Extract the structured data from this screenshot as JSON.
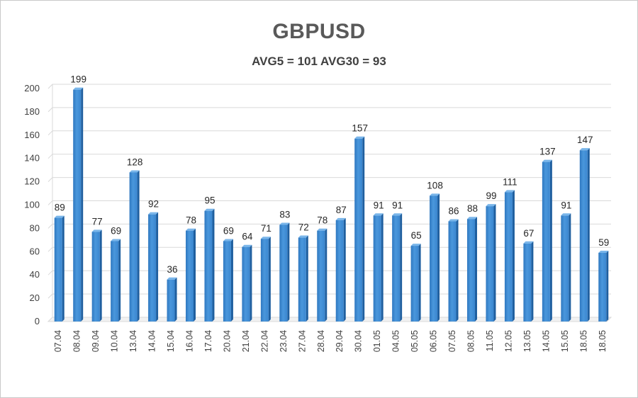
{
  "chart_data": {
    "type": "bar",
    "title": "GBPUSD",
    "subtitle": "AVG5 = 101 AVG30 = 93",
    "categories": [
      "07.04",
      "08.04",
      "09.04",
      "10.04",
      "13.04",
      "14.04",
      "15.04",
      "16.04",
      "17.04",
      "20.04",
      "21.04",
      "22.04",
      "23.04",
      "27.04",
      "28.04",
      "29.04",
      "30.04",
      "01.05",
      "04.05",
      "05.05",
      "06.05",
      "07.05",
      "08.05",
      "11.05",
      "12.05",
      "13.05",
      "14.05",
      "15.05",
      "18.05",
      "18.05"
    ],
    "values": [
      89,
      199,
      77,
      69,
      128,
      92,
      36,
      78,
      95,
      69,
      64,
      71,
      83,
      72,
      78,
      87,
      157,
      91,
      91,
      65,
      108,
      86,
      88,
      99,
      111,
      67,
      137,
      91,
      147,
      59
    ],
    "ylim": [
      0,
      200
    ],
    "yticks": [
      0,
      20,
      40,
      60,
      80,
      100,
      120,
      140,
      160,
      180,
      200
    ],
    "grid": true,
    "bar_color": "#3d8bd4",
    "legend": "none"
  }
}
